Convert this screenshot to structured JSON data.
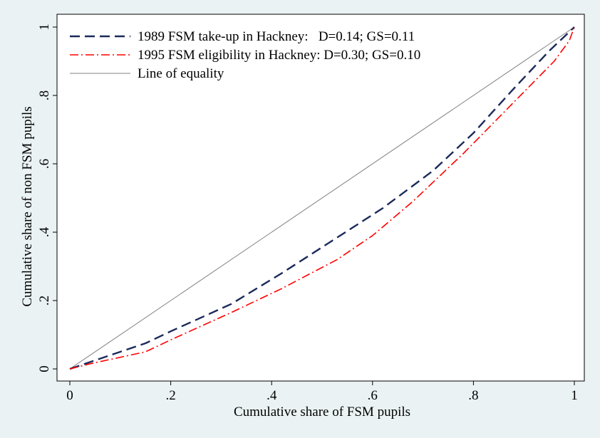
{
  "chart_data": {
    "type": "line",
    "xlabel": "Cumulative share of FSM pupils",
    "ylabel": "Cumulative share of non FSM pupils",
    "xlim": [
      0,
      1
    ],
    "ylim": [
      0,
      1
    ],
    "x_ticks": [
      0,
      0.2,
      0.4,
      0.6,
      0.8,
      1
    ],
    "x_tick_labels": [
      "0",
      ".2",
      ".4",
      ".6",
      ".8",
      "1"
    ],
    "y_ticks": [
      0,
      0.2,
      0.4,
      0.6,
      0.8,
      1
    ],
    "y_tick_labels": [
      "0",
      ".2",
      ".4",
      ".6",
      ".8",
      "1"
    ],
    "grid": false,
    "legend_position": "top-left",
    "series": [
      {
        "name": "1989 FSM take-up in Hackney:   D=0.14; GS=0.11",
        "color": "#1a2a5a",
        "style": "dashed",
        "x": [
          0,
          0.04,
          0.15,
          0.2,
          0.32,
          0.42,
          0.52,
          0.62,
          0.72,
          0.8,
          0.88,
          0.95,
          1
        ],
        "y": [
          0,
          0.02,
          0.075,
          0.11,
          0.19,
          0.28,
          0.375,
          0.47,
          0.58,
          0.69,
          0.82,
          0.93,
          1
        ]
      },
      {
        "name": "1995 FSM eligibility in Hackney: D=0.30; GS=0.10",
        "color": "#ff0000",
        "style": "dashdot",
        "x": [
          0,
          0.04,
          0.15,
          0.2,
          0.32,
          0.42,
          0.53,
          0.6,
          0.68,
          0.78,
          0.88,
          0.96,
          0.99,
          1
        ],
        "y": [
          0,
          0.015,
          0.05,
          0.085,
          0.165,
          0.235,
          0.32,
          0.39,
          0.49,
          0.63,
          0.78,
          0.9,
          0.96,
          1
        ]
      },
      {
        "name": "Line of equality",
        "color": "#808080",
        "style": "solid",
        "x": [
          0,
          1
        ],
        "y": [
          0,
          1
        ]
      }
    ]
  }
}
